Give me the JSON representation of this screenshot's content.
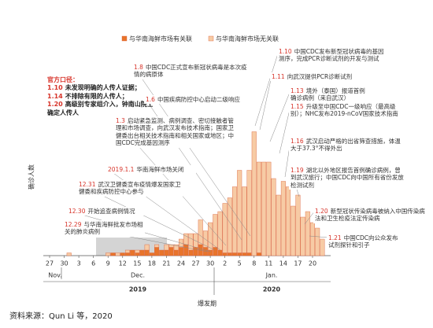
{
  "chart_data": {
    "type": "bar",
    "stacked": true,
    "y_label": "确诊人数",
    "x_label": "爆发期",
    "categories": [
      "27",
      null,
      null,
      "30",
      null,
      null,
      "3",
      null,
      null,
      "6",
      null,
      null,
      "9",
      null,
      null,
      "12",
      null,
      null,
      "15",
      null,
      null,
      "18",
      null,
      null,
      "21",
      null,
      null,
      "24",
      null,
      null,
      "27",
      null,
      null,
      "30",
      null,
      null,
      "2",
      null,
      null,
      "5",
      null,
      null,
      "8",
      null,
      null,
      "11",
      null,
      null,
      "14",
      null,
      null,
      "17",
      null,
      null,
      "20",
      null,
      null
    ],
    "months": [
      "Nov.",
      "Dec.",
      "Jan."
    ],
    "years": [
      "2019",
      "2020"
    ],
    "ylim": [
      0,
      50
    ],
    "series": [
      {
        "name": "与华南海鲜市场有关联",
        "color": "#e8742b",
        "values": [
          0,
          0,
          0,
          0,
          0,
          0,
          0,
          0,
          0,
          0,
          0,
          0,
          0,
          1,
          0,
          1,
          1,
          2,
          1,
          2,
          2,
          1,
          3,
          2,
          2,
          3,
          2,
          3,
          4,
          2,
          3,
          4,
          3,
          2,
          3,
          2,
          1,
          1,
          1,
          1,
          1,
          1,
          0,
          1,
          0,
          0,
          0,
          0,
          0,
          0,
          0,
          0,
          0,
          0,
          0,
          0,
          0
        ]
      },
      {
        "name": "与华南海鲜市场无关联",
        "color": "#f7cba5",
        "values": [
          0,
          0,
          0,
          0,
          1,
          0,
          0,
          0,
          0,
          0,
          0,
          0,
          1,
          0,
          1,
          0,
          1,
          0,
          1,
          0,
          2,
          0,
          1,
          0,
          2,
          1,
          2,
          3,
          4,
          6,
          5,
          9,
          6,
          10,
          12,
          14,
          18,
          20,
          24,
          30,
          24,
          30,
          45,
          33,
          34,
          34,
          28,
          22,
          27,
          25,
          18,
          22,
          14,
          16,
          12,
          10,
          6
        ]
      }
    ],
    "official": {
      "heading": "官方口径：",
      "items": [
        {
          "date": "1.10",
          "text": "未发现明确的人传人证据；"
        },
        {
          "date": "1.14",
          "text": "不排除有限的人传人；"
        },
        {
          "date": "1.20",
          "text": "高级别专家组介入，钟南山院士确定人传人"
        }
      ]
    },
    "annotations": [
      {
        "date": "1.8",
        "text": "中国CDC正式宣布新冠状病毒是本次疫情的病原体"
      },
      {
        "date": "1.6",
        "text": "中国疾病防控中心启动二级响应"
      },
      {
        "date": "1.3",
        "text": "启动紧急监测、病例调查、密切接触者管理和市场调查，向武汉发布技术指南；国家卫健委出台相关技术指南和相关国家或地区；中国CDC完成基因测序"
      },
      {
        "date": "2019.1.1",
        "text": "华南海鲜市场关闭"
      },
      {
        "date": "12.31",
        "text": "武汉卫健委宣布疫情爆发国家卫健委和疾病防控中心参与"
      },
      {
        "date": "12.30",
        "text": "开始追查病例情况"
      },
      {
        "date": "12.29",
        "text": "与华南海鲜批发市场相关的肺炎病例"
      },
      {
        "date": "1.10",
        "text": "中国CDC发布新型冠状病毒的基因测序，完成PCR诊断试剂的开发与测试"
      },
      {
        "date": "1.11",
        "text": "向武汉提供PCR诊断试剂"
      },
      {
        "date": "1.13",
        "text": "境外（泰国）报道首例确诊病例（来自武汉）"
      },
      {
        "date": "1.15",
        "text": "升级至中国CDC一级响应（最高级别）；NHC发布2019-nCoV国家技术指南"
      },
      {
        "date": "1.16",
        "text": "武汉启动严格的出省筛查措施，体温大于37.3°不得外出"
      },
      {
        "date": "1.19",
        "text": "湖北以外地区报告首例确诊病例，曾到武汉旅行；中国CDC向中国所有省份发放检测试剂"
      },
      {
        "date": "1.20",
        "text": "新型冠状传染病毒被纳入中国传染病法和卫生检疫法定传染病"
      },
      {
        "date": "1.21",
        "text": "中国CDC向公众发布试剂探针和引子"
      }
    ],
    "source": "资料来源：Qun Li 等，2020"
  }
}
